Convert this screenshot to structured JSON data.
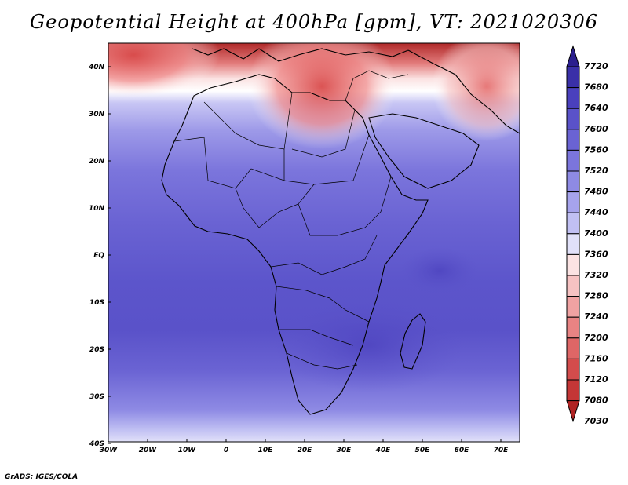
{
  "title": "Geopotential Height at 400hPa [gpm], VT: 2021020306",
  "footer": "GrADS: IGES/COLA",
  "map": {
    "lon_ticks": [
      "30W",
      "20W",
      "10W",
      "0",
      "10E",
      "20E",
      "30E",
      "40E",
      "50E",
      "60E",
      "70E"
    ],
    "lat_ticks": [
      "40N",
      "30N",
      "20N",
      "10N",
      "EQ",
      "10S",
      "20S",
      "30S",
      "40S"
    ],
    "lon_range": [
      -30,
      75
    ],
    "lat_range": [
      -40,
      45
    ]
  },
  "colorbar": {
    "labels": [
      "7720",
      "7680",
      "7640",
      "7600",
      "7560",
      "7520",
      "7480",
      "7440",
      "7400",
      "7360",
      "7320",
      "7280",
      "7240",
      "7200",
      "7160",
      "7120",
      "7080",
      "7030"
    ],
    "colors": [
      "#2b1f8e",
      "#3a30a8",
      "#4a40bd",
      "#5a52c9",
      "#6a63d3",
      "#7b75dc",
      "#8e8ae4",
      "#a6a3ec",
      "#c1c0f3",
      "#e1e1f9",
      "#fbe3e3",
      "#f6c2c2",
      "#f0a2a2",
      "#e88383",
      "#de6666",
      "#d34c4c",
      "#c43636",
      "#b02323"
    ]
  }
}
